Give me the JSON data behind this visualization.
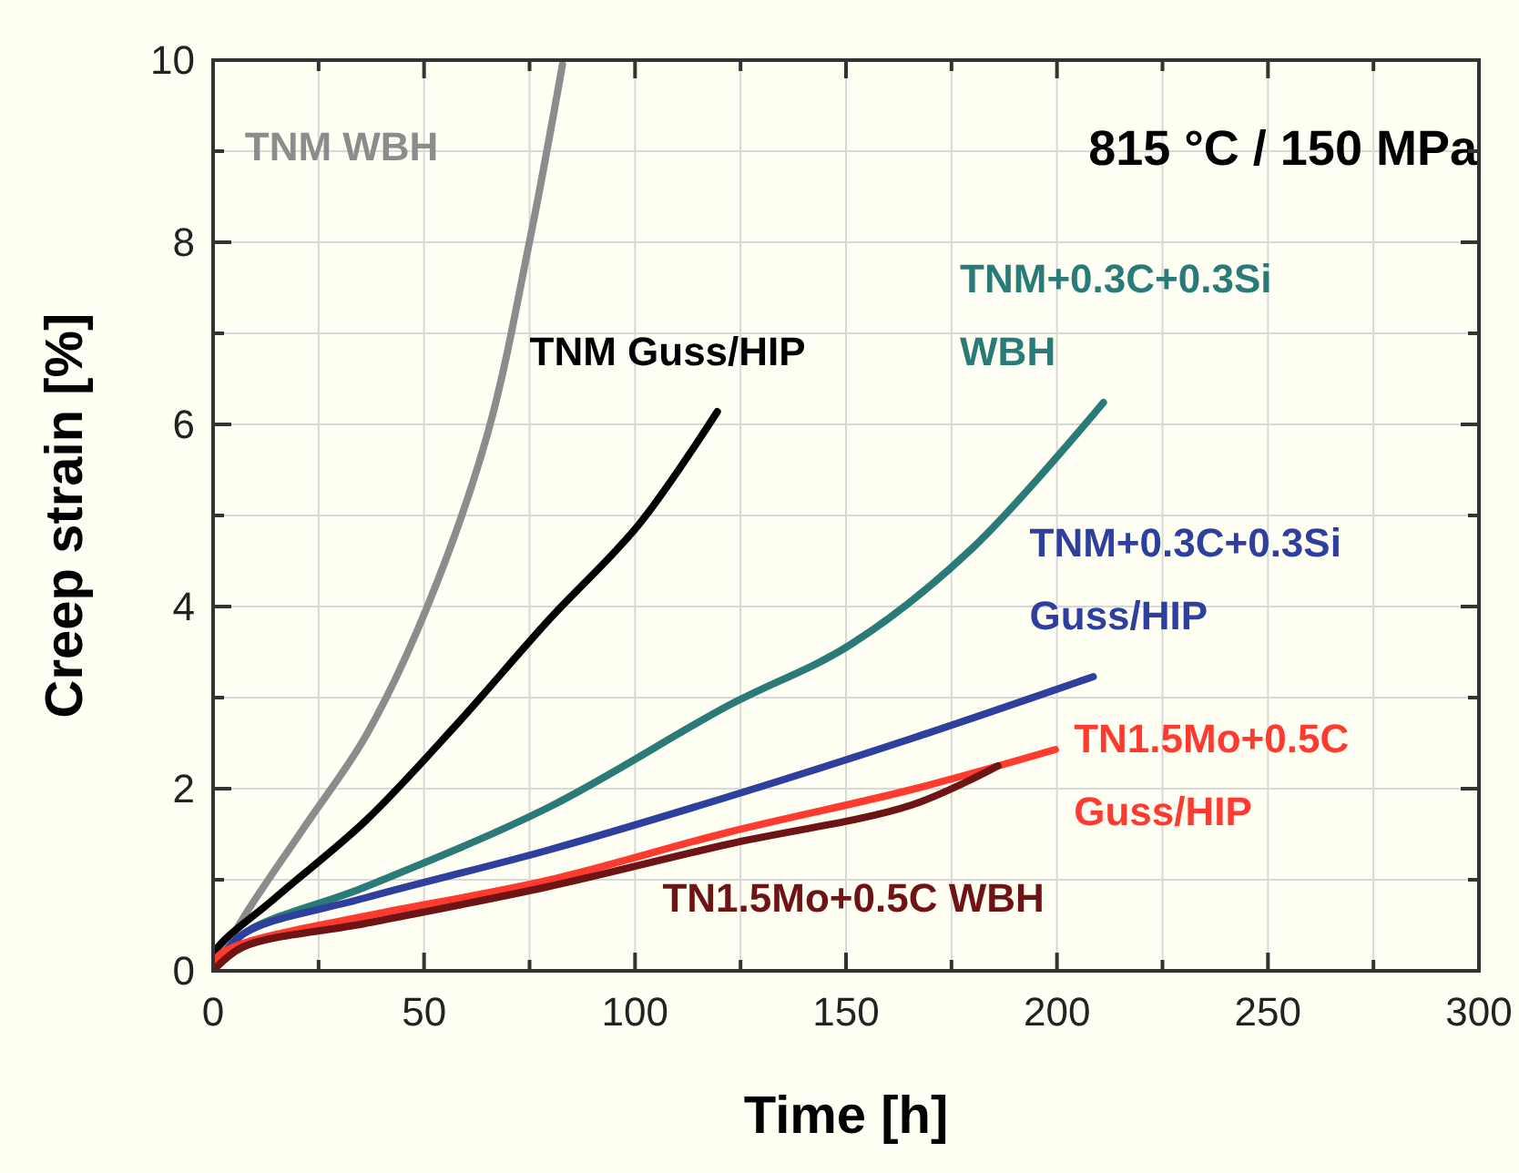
{
  "chart_data": {
    "type": "line",
    "title": "815 °C / 150 MPa",
    "xlabel": "Time [h]",
    "ylabel": "Creep strain [%]",
    "xlim": [
      0,
      300
    ],
    "xticks": [
      0,
      {
        "value": 25,
        "label": null
      },
      50,
      {
        "value": 75,
        "label": null
      },
      100,
      {
        "value": 125,
        "label": null
      },
      150,
      {
        "value": 175,
        "label": null
      },
      200,
      {
        "value": 225,
        "label": null
      },
      250,
      {
        "value": 275,
        "label": null
      },
      300
    ],
    "ylim": [
      0,
      10
    ],
    "yticks": [
      0,
      {
        "value": 1,
        "label": null
      },
      2,
      {
        "value": 3,
        "label": null
      },
      4,
      {
        "value": 5,
        "label": null
      },
      6,
      {
        "value": 7,
        "label": null
      },
      8,
      {
        "value": 9,
        "label": null
      },
      10
    ],
    "grid": true,
    "marker": "none",
    "line_style": "solid",
    "series": [
      {
        "name": "TNM WBH",
        "color": "#8c8c8c",
        "x": [
          0,
          7.4,
          21.8,
          36.2,
          50.6,
          65,
          75,
          82.8
        ],
        "values": [
          0,
          0.6,
          1.59,
          2.58,
          3.98,
          5.89,
          8.01,
          9.95
        ]
      },
      {
        "name": "TNM Guss/HIP",
        "color": "#000000",
        "x": [
          0,
          0.3,
          14.7,
          36.2,
          57.8,
          79.3,
          100.9,
          119.5
        ],
        "values": [
          0,
          0.2,
          0.8,
          1.65,
          2.71,
          3.84,
          4.9,
          6.14
        ]
      },
      {
        "name": "TNM+0.3C+0.3Si WBH",
        "color": "#2a7a78",
        "x": [
          0,
          7,
          36,
          79.3,
          122,
          151,
          179.7,
          211
        ],
        "values": [
          0,
          0.4,
          0.92,
          1.79,
          2.91,
          3.58,
          4.63,
          6.24
        ]
      },
      {
        "name": "TNM+0.3C+0.3Si Guss/HIP",
        "color": "#2e3f9e",
        "x": [
          0,
          7,
          36,
          79,
          122,
          165.5,
          208.6
        ],
        "values": [
          0,
          0.4,
          0.8,
          1.32,
          1.91,
          2.55,
          3.23
        ]
      },
      {
        "name": "TN1.5Mo+0.5C Guss/HIP",
        "color": "#ff3b30",
        "x": [
          0,
          1,
          7,
          36,
          79,
          122,
          165.5,
          199.6
        ],
        "values": [
          0,
          0.15,
          0.3,
          0.6,
          0.99,
          1.52,
          1.99,
          2.43
        ]
      },
      {
        "name": "TN1.5Mo+0.5C WBH",
        "color": "#6e1414",
        "x": [
          0,
          7,
          36,
          79,
          122,
          165.5,
          186
        ],
        "values": [
          0,
          0.26,
          0.52,
          0.92,
          1.39,
          1.82,
          2.25
        ]
      }
    ]
  }
}
